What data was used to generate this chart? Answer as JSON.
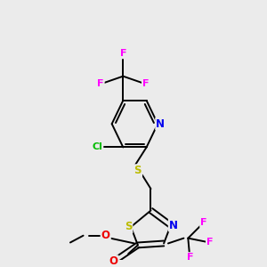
{
  "background_color": "#ebebeb",
  "figsize": [
    3.0,
    3.0
  ],
  "dpi": 100,
  "bond_color": "#000000",
  "lw": 1.4,
  "colors": {
    "F": "#ff00ff",
    "Cl": "#00bb00",
    "N": "#0000ee",
    "S": "#bbbb00",
    "O": "#ee0000",
    "C": "#000000"
  },
  "xlim": [
    0,
    300
  ],
  "ylim": [
    0,
    300
  ]
}
